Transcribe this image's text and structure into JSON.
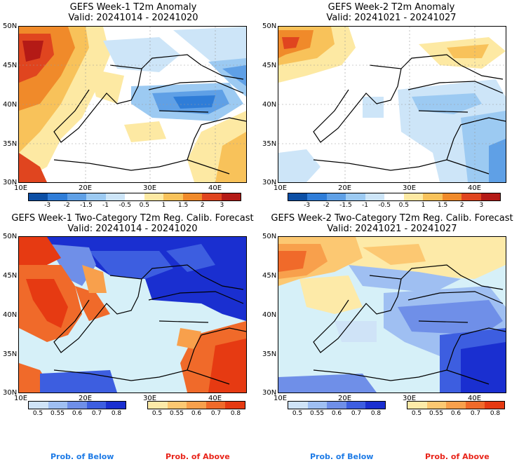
{
  "panels": [
    {
      "title": "GEFS Week-1 T2m Anomaly",
      "valid": "Valid: 20241014 - 20241020"
    },
    {
      "title": "GEFS Week-2 T2m Anomaly",
      "valid": "Valid: 20241021 - 20241027"
    },
    {
      "title": "GEFS Week-1 Two-Category T2m Reg. Calib. Forecast",
      "valid": "Valid: 20241014 - 20241020"
    },
    {
      "title": "GEFS Week-2 Two-Category T2m Reg. Calib. Forecast",
      "valid": "Valid: 20241021 - 20241027"
    }
  ],
  "axes": {
    "lat_labels": [
      "50N",
      "45N",
      "40N",
      "35N",
      "30N"
    ],
    "lon_labels": [
      "10E",
      "20E",
      "30E",
      "40E"
    ]
  },
  "anomaly_colorbar": {
    "ticks": [
      "-3",
      "-2",
      "-1.5",
      "-1",
      "-0.5",
      "0.5",
      "1",
      "1.5",
      "2",
      "3"
    ],
    "colors": [
      "#0c4fa5",
      "#2f7dd8",
      "#5fa0e6",
      "#9ccaf2",
      "#cde5f8",
      "#ffffff",
      "#fde9a3",
      "#f8c25a",
      "#f08a2a",
      "#e0451f",
      "#b41a16"
    ]
  },
  "prob_below_colorbar": {
    "ticks": [
      "0.5",
      "0.55",
      "0.6",
      "0.7",
      "0.8"
    ],
    "colors": [
      "#cfe3f7",
      "#9fbff2",
      "#6f8fe8",
      "#3d5ee0",
      "#1a2fd0"
    ],
    "label": "Prob. of Below",
    "label_color": "#1e7be6"
  },
  "prob_above_colorbar": {
    "ticks": [
      "0.5",
      "0.55",
      "0.6",
      "0.7",
      "0.8"
    ],
    "colors": [
      "#fdeaa8",
      "#fcc872",
      "#f8a04c",
      "#f06a2a",
      "#e63a12"
    ],
    "label": "Prob. of Above",
    "label_color": "#e8241a"
  }
}
